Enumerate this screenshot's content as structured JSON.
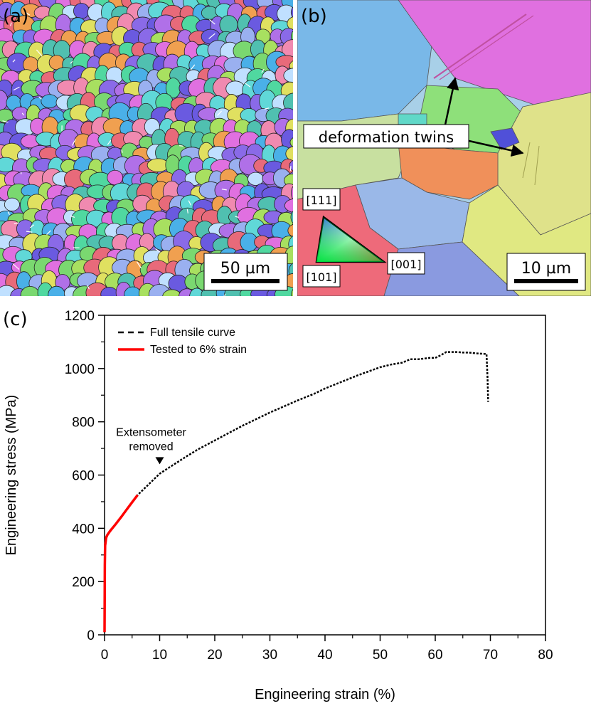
{
  "panels": {
    "a": {
      "letter": "(a)",
      "scale_bar": "50 µm"
    },
    "b": {
      "letter": "(b)",
      "scale_bar": "10 µm",
      "annotation": "deformation twins",
      "ipf_key": {
        "top": "[111]",
        "right": "[001]",
        "bottom": "[101]"
      }
    },
    "c": {
      "letter": "(c)"
    }
  },
  "chart_data": {
    "type": "line",
    "title": "",
    "xlabel": "Engineering strain (%)",
    "ylabel": "Engineering stress (MPa)",
    "xlim": [
      0,
      80
    ],
    "ylim": [
      0,
      1200
    ],
    "xticks": [
      0,
      10,
      20,
      30,
      40,
      50,
      60,
      70,
      80
    ],
    "yticks": [
      0,
      200,
      400,
      600,
      800,
      1000,
      1200
    ],
    "legend_position": "top-left",
    "annotation": {
      "line1": "Extensometer",
      "line2": "removed",
      "x": 10,
      "y": 635
    },
    "series": [
      {
        "name": "Full tensile curve",
        "style": "dashed",
        "color": "#000000",
        "x": [
          0,
          0.05,
          0.1,
          0.3,
          0.5,
          1,
          2,
          3,
          4,
          5,
          6,
          8,
          10,
          12,
          15,
          17,
          20,
          22,
          25,
          28,
          30,
          33,
          35,
          38,
          40,
          43,
          46,
          48,
          50,
          52,
          54,
          55.5,
          57,
          59,
          60,
          61,
          62,
          63,
          64,
          65,
          66,
          67,
          68,
          69.3,
          69.5,
          69.6
        ],
        "y": [
          10,
          262,
          335,
          365,
          375,
          390,
          415,
          442,
          470,
          498,
          525,
          565,
          605,
          632,
          672,
          697,
          730,
          752,
          785,
          815,
          835,
          862,
          880,
          905,
          925,
          950,
          975,
          990,
          1005,
          1015,
          1022,
          1035,
          1035,
          1040,
          1040,
          1050,
          1062,
          1062,
          1062,
          1060,
          1060,
          1058,
          1056,
          1055,
          960,
          875
        ]
      },
      {
        "name": "Tested to 6% strain",
        "style": "solid",
        "color": "#ff0000",
        "x": [
          0,
          0.05,
          0.1,
          0.3,
          0.5,
          1,
          2,
          3,
          4,
          5,
          6
        ],
        "y": [
          10,
          262,
          335,
          365,
          375,
          390,
          415,
          442,
          470,
          498,
          525
        ]
      }
    ]
  },
  "colors": {
    "full_curve": "#000000",
    "tested_curve": "#ff0000"
  }
}
